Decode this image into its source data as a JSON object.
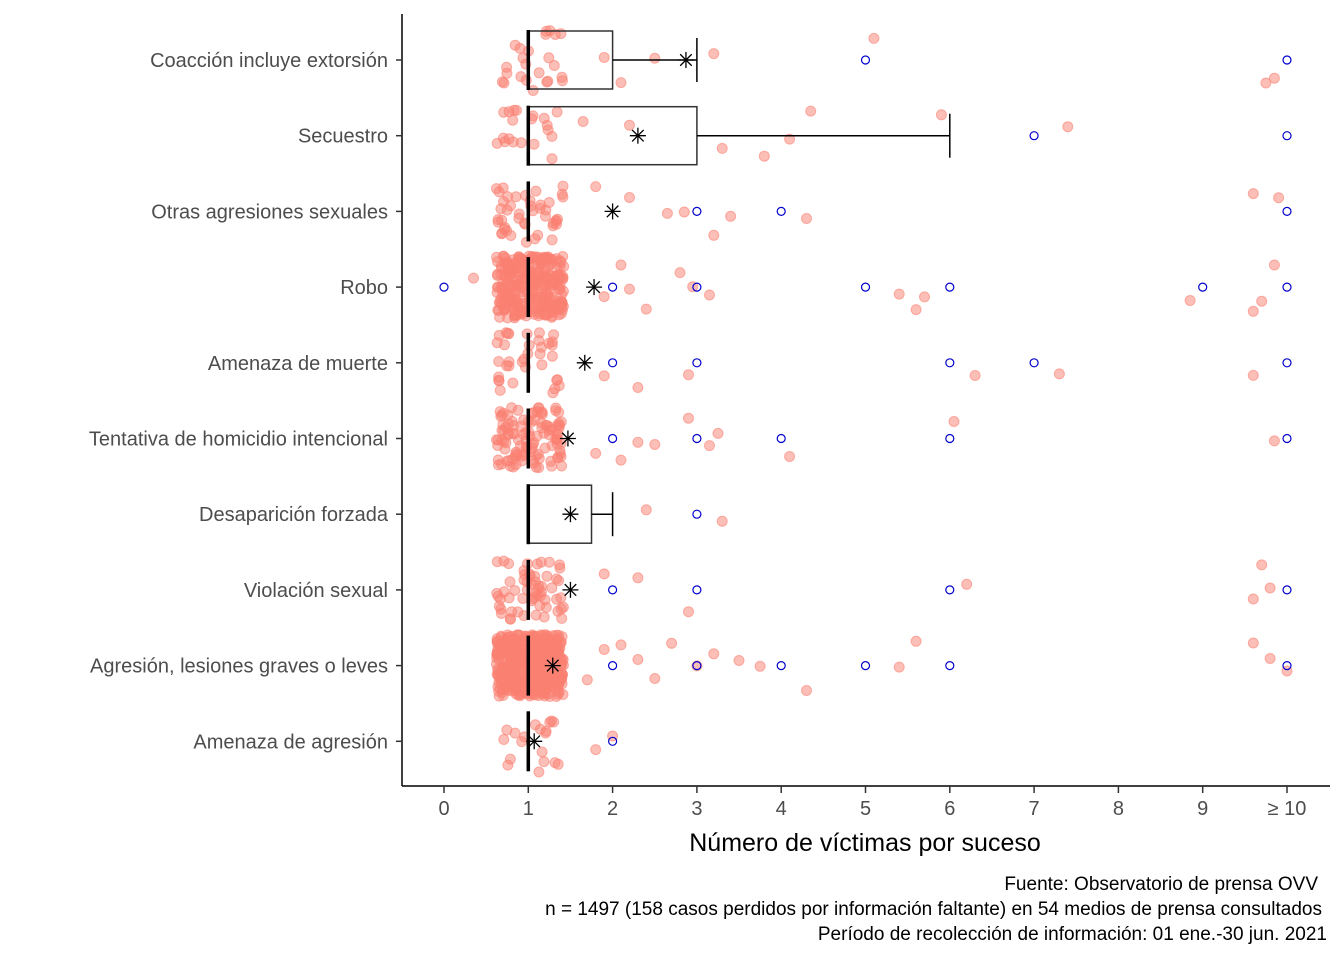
{
  "chart_data": {
    "type": "boxplot-jitter",
    "xlabel": "Número de víctimas por suceso",
    "ylabel": "",
    "xlim": [
      -0.5,
      10.5
    ],
    "x_ticks": [
      0,
      1,
      2,
      3,
      4,
      5,
      6,
      7,
      8,
      9,
      10
    ],
    "x_tick_labels": [
      "0",
      "1",
      "2",
      "3",
      "4",
      "5",
      "6",
      "7",
      "8",
      "9",
      "≥ 10"
    ],
    "grid": false,
    "legend": "none",
    "colors": {
      "points": "#fa8072",
      "box": "#000000",
      "outlier": "#0000cd",
      "mean": "#000000"
    },
    "categories": [
      {
        "label": "Amenaza de agresión",
        "q1": 1,
        "median": 1,
        "q3": 1,
        "whisker_low": 1,
        "whisker_high": 1,
        "mean": 1.07,
        "outliers": [
          2
        ],
        "density": 18
      },
      {
        "label": "Agresión, lesiones graves o leves",
        "q1": 1,
        "median": 1,
        "q3": 1,
        "whisker_low": 1,
        "whisker_high": 1,
        "mean": 1.29,
        "outliers": [
          2,
          3,
          4,
          5,
          6,
          10
        ],
        "density": 420
      },
      {
        "label": "Violación sexual",
        "q1": 1,
        "median": 1,
        "q3": 1,
        "whisker_low": 1,
        "whisker_high": 1,
        "mean": 1.5,
        "outliers": [
          2,
          3,
          6,
          10
        ],
        "density": 60
      },
      {
        "label": "Desaparición forzada",
        "q1": 1,
        "median": 1,
        "q3": 1.75,
        "whisker_low": 1,
        "whisker_high": 2,
        "mean": 1.5,
        "outliers": [
          3
        ],
        "density": 0
      },
      {
        "label": "Tentativa de homicidio intencional",
        "q1": 1,
        "median": 1,
        "q3": 1,
        "whisker_low": 1,
        "whisker_high": 1,
        "mean": 1.47,
        "outliers": [
          2,
          3,
          4,
          6,
          10
        ],
        "density": 110
      },
      {
        "label": "Amenaza de muerte",
        "q1": 1,
        "median": 1,
        "q3": 1,
        "whisker_low": 1,
        "whisker_high": 1,
        "mean": 1.67,
        "outliers": [
          2,
          3,
          6,
          7,
          10
        ],
        "density": 36
      },
      {
        "label": "Robo",
        "q1": 1,
        "median": 1,
        "q3": 1,
        "whisker_low": 1,
        "whisker_high": 1,
        "mean": 1.78,
        "outliers": [
          0,
          2,
          3,
          5,
          6,
          9,
          10
        ],
        "density": 300
      },
      {
        "label": "Otras agresiones sexuales",
        "q1": 1,
        "median": 1,
        "q3": 1,
        "whisker_low": 1,
        "whisker_high": 1,
        "mean": 2.0,
        "outliers": [
          3,
          4,
          10
        ],
        "density": 45
      },
      {
        "label": "Secuestro",
        "q1": 1,
        "median": 1,
        "q3": 3,
        "whisker_low": 1,
        "whisker_high": 6,
        "mean": 2.3,
        "outliers": [
          7,
          10
        ],
        "density": 20
      },
      {
        "label": "Coacción  incluye extorsión",
        "q1": 1,
        "median": 1,
        "q3": 2,
        "whisker_low": 1,
        "whisker_high": 3,
        "mean": 2.87,
        "outliers": [
          5,
          10
        ],
        "density": 24
      }
    ],
    "extra_points": [
      {
        "cat": 0,
        "x": [
          1.3,
          1.8,
          2.0
        ]
      },
      {
        "cat": 1,
        "x": [
          1.7,
          1.9,
          2.1,
          2.3,
          2.5,
          2.7,
          3.0,
          3.2,
          3.5,
          3.75,
          4.3,
          5.4,
          5.6,
          9.6,
          9.8,
          10.0
        ]
      },
      {
        "cat": 2,
        "x": [
          1.9,
          2.3,
          2.9,
          6.2,
          9.6,
          9.7,
          9.8
        ]
      },
      {
        "cat": 3,
        "x": [
          2.4,
          3.3
        ]
      },
      {
        "cat": 4,
        "x": [
          1.8,
          2.1,
          2.3,
          2.5,
          2.9,
          3.15,
          3.25,
          4.1,
          6.05,
          9.85
        ]
      },
      {
        "cat": 5,
        "x": [
          1.9,
          2.3,
          2.9,
          6.3,
          7.3,
          9.6
        ]
      },
      {
        "cat": 6,
        "x": [
          0.35,
          1.9,
          2.1,
          2.2,
          2.4,
          2.8,
          2.95,
          3.15,
          5.4,
          5.6,
          5.7,
          8.85,
          9.6,
          9.7,
          9.85
        ]
      },
      {
        "cat": 7,
        "x": [
          1.8,
          2.2,
          2.65,
          2.85,
          3.2,
          3.4,
          4.3,
          9.6,
          9.9
        ]
      },
      {
        "cat": 8,
        "x": [
          1.65,
          2.2,
          3.3,
          3.8,
          4.1,
          4.35,
          5.9,
          7.4
        ]
      },
      {
        "cat": 9,
        "x": [
          1.9,
          2.1,
          2.5,
          3.2,
          5.1,
          9.75,
          9.85
        ]
      }
    ]
  },
  "caption": {
    "source": "Fuente: Observatorio de prensa OVV",
    "n_note": "n = 1497 (158 casos perdidos por información faltante) en 54 medios de prensa consultados",
    "period": "Período de recolección de información: 01 ene.-30 jun. 2021"
  }
}
